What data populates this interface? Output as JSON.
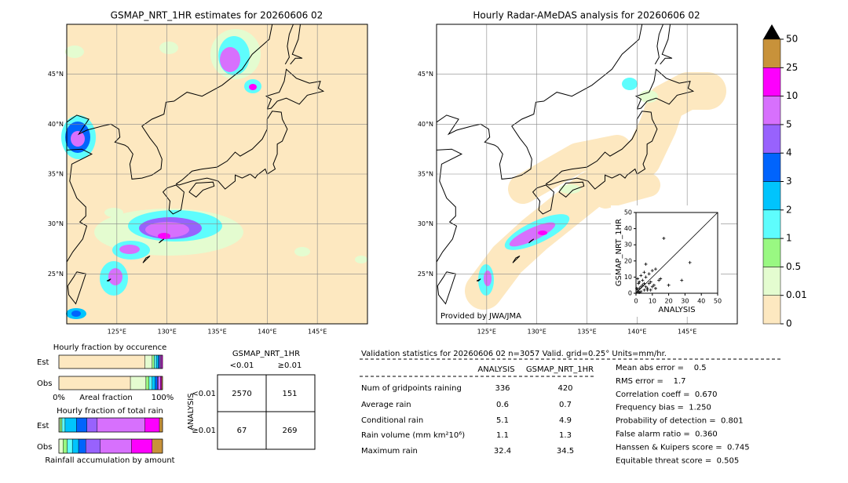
{
  "left_map": {
    "title": "GSMAP_NRT_1HR estimates for 20260606 02",
    "xlim": [
      120,
      150
    ],
    "ylim": [
      20,
      50
    ],
    "xticks": [
      {
        "value": 125,
        "label": "125°E"
      },
      {
        "value": 130,
        "label": "130°E"
      },
      {
        "value": 135,
        "label": "135°E"
      },
      {
        "value": 140,
        "label": "140°E"
      },
      {
        "value": 145,
        "label": "145°E"
      }
    ],
    "yticks": [
      {
        "value": 25,
        "label": "25°N"
      },
      {
        "value": 30,
        "label": "30°N"
      },
      {
        "value": 35,
        "label": "35°N"
      },
      {
        "value": 40,
        "label": "40°N"
      },
      {
        "value": 45,
        "label": "45°N"
      }
    ]
  },
  "right_map": {
    "title": "Hourly Radar-AMeDAS analysis for 20260606 02",
    "credit": "Provided by JWA/JMA",
    "xlim": [
      120,
      150
    ],
    "ylim": [
      20,
      50
    ],
    "xticks": [
      {
        "value": 125,
        "label": "125°E"
      },
      {
        "value": 130,
        "label": "130°E"
      },
      {
        "value": 135,
        "label": "135°E"
      },
      {
        "value": 140,
        "label": "140°E"
      },
      {
        "value": 145,
        "label": "145°E"
      }
    ],
    "yticks": [
      {
        "value": 25,
        "label": "25°N"
      },
      {
        "value": 30,
        "label": "30°N"
      },
      {
        "value": 35,
        "label": "35°N"
      },
      {
        "value": 40,
        "label": "40°N"
      },
      {
        "value": 45,
        "label": "45°N"
      }
    ]
  },
  "colorbar": {
    "levels": [
      0,
      0.01,
      0.5,
      1,
      2,
      3,
      4,
      5,
      10,
      25,
      50
    ],
    "colors": [
      "#fde8c0",
      "#e4fcd0",
      "#99f882",
      "#5efdfd",
      "#00c4fd",
      "#0064fd",
      "#9862fd",
      "#d770fd",
      "#fd00fd",
      "#c8923a"
    ]
  },
  "scatter": {
    "type": "scatter",
    "xlabel": "ANALYSIS",
    "ylabel": "GSMAP_NRT_1HR",
    "xlim": [
      0,
      50
    ],
    "ylim": [
      0,
      50
    ],
    "xticks": [
      0,
      10,
      20,
      30,
      40,
      50
    ],
    "yticks": [
      0,
      10,
      20,
      30,
      40,
      50
    ],
    "x": [
      1,
      2,
      3,
      4,
      5,
      6,
      7,
      8,
      9,
      10,
      11,
      12,
      14,
      15,
      2,
      4,
      6,
      8,
      1,
      3,
      5,
      33,
      28,
      17,
      10,
      12,
      1,
      2,
      5,
      7,
      3,
      9,
      0.5,
      1.5,
      20,
      6
    ],
    "y": [
      2,
      3,
      1,
      5,
      2,
      4,
      3,
      6,
      2,
      4,
      5,
      3,
      8,
      9,
      7,
      8,
      10,
      12,
      9,
      11,
      13,
      19,
      8,
      34,
      14,
      15,
      1,
      0.5,
      6,
      2,
      4,
      7,
      3,
      6,
      5,
      18
    ]
  },
  "occurrence": {
    "title": "Hourly fraction by occurence",
    "rows": [
      "Est",
      "Obs"
    ],
    "xlabel": "Areal fraction",
    "xlim": [
      0,
      100
    ],
    "xticks": [
      {
        "value": 0,
        "label": "0%"
      },
      {
        "value": 100,
        "label": "100%"
      }
    ],
    "est": [
      83,
      7,
      2,
      2,
      2,
      1,
      1,
      1,
      1,
      0
    ],
    "obs": [
      69,
      15,
      3,
      3,
      3,
      2,
      1,
      2,
      1,
      1
    ]
  },
  "total_rain": {
    "title": "Hourly fraction of total rain",
    "rows": [
      "Est",
      "Obs"
    ],
    "xlabel": "Rainfall accumulation by amount",
    "xlim": [
      0,
      100
    ],
    "est": [
      0,
      1,
      2,
      3,
      11,
      10,
      10,
      46,
      14,
      3
    ],
    "obs": [
      0,
      4,
      4,
      5,
      6,
      7,
      14,
      30,
      20,
      10
    ]
  },
  "contingency": {
    "title": "GSMAP_NRT_1HR",
    "col_labels": [
      "<0.01",
      "≥0.01"
    ],
    "row_title": "ANALYSIS",
    "row_labels": [
      "<0.01",
      "≥0.01"
    ],
    "cells": [
      [
        "2570",
        "151"
      ],
      [
        "67",
        "269"
      ]
    ]
  },
  "validation": {
    "header": "Validation statistics for 20260606 02  n=3057 Valid. grid=0.25° Units=mm/hr.",
    "columns": [
      "ANALYSIS",
      "GSMAP_NRT_1HR"
    ],
    "rows": [
      {
        "label": "Num of gridpoints raining",
        "values": [
          "336",
          "420"
        ]
      },
      {
        "label": "Average rain",
        "values": [
          "0.6",
          "0.7"
        ]
      },
      {
        "label": "Conditional rain",
        "values": [
          "5.1",
          "4.9"
        ]
      },
      {
        "label": "Rain volume (mm km²10⁶)",
        "values": [
          "1.1",
          "1.3"
        ]
      },
      {
        "label": "Maximum rain",
        "values": [
          "32.4",
          "34.5"
        ]
      }
    ],
    "scores": [
      "Mean abs error =    0.5",
      "RMS error =    1.7",
      "Correlation coeff =  0.670",
      "Frequency bias =  1.250",
      "Probability of detection =  0.801",
      "False alarm ratio =  0.360",
      "Hanssen & Kuipers score =  0.745",
      "Equitable threat score =  0.505"
    ]
  }
}
